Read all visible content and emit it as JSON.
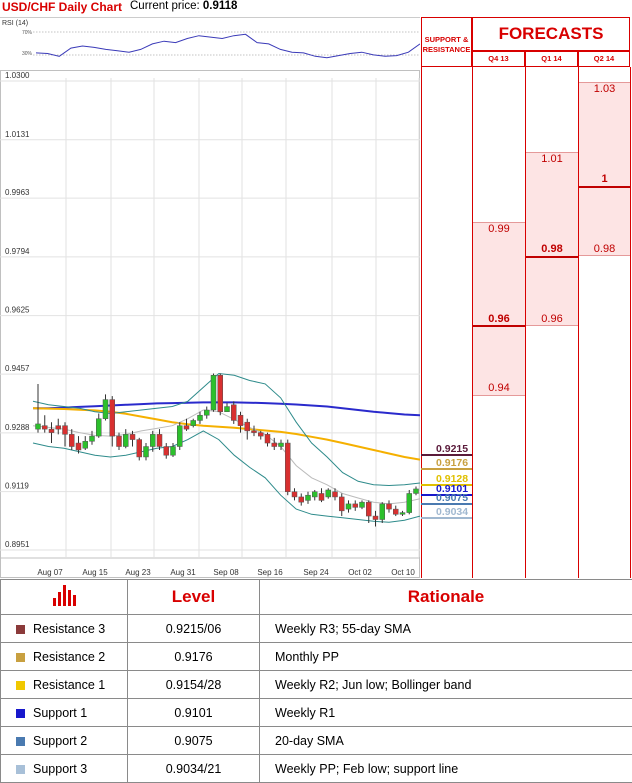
{
  "header": {
    "title": "USD/CHF Daily Chart",
    "price_label": "Current price:",
    "price_value": "0.9118"
  },
  "rsi_panel": {
    "label": "RSI (14)",
    "upper": "70%",
    "lower": "30%"
  },
  "chart_data": {
    "type": "candlestick",
    "title": "USD/CHF Daily Chart",
    "y_ticks": [
      "1.0300",
      "1.0131",
      "0.9963",
      "0.9794",
      "0.9625",
      "0.9457",
      "0.9288",
      "0.9119",
      "0.8951"
    ],
    "ylim": [
      0.8951,
      1.03
    ],
    "x_ticks": [
      "Aug 07",
      "Aug 15",
      "Aug 23",
      "Aug 31",
      "Sep 08",
      "Sep 16",
      "Sep 24",
      "Oct 02",
      "Oct 10"
    ],
    "grid": true,
    "candles": [
      {
        "o": 0.929,
        "c": 0.9305,
        "h": 0.942,
        "l": 0.928
      },
      {
        "o": 0.93,
        "c": 0.929,
        "h": 0.933,
        "l": 0.928
      },
      {
        "o": 0.929,
        "c": 0.928,
        "h": 0.931,
        "l": 0.925
      },
      {
        "o": 0.93,
        "c": 0.929,
        "h": 0.932,
        "l": 0.9275
      },
      {
        "o": 0.93,
        "c": 0.9275,
        "h": 0.931,
        "l": 0.924
      },
      {
        "o": 0.9275,
        "c": 0.924,
        "h": 0.929,
        "l": 0.923
      },
      {
        "o": 0.925,
        "c": 0.923,
        "h": 0.927,
        "l": 0.922
      },
      {
        "o": 0.9235,
        "c": 0.9255,
        "h": 0.927,
        "l": 0.923
      },
      {
        "o": 0.9255,
        "c": 0.927,
        "h": 0.9285,
        "l": 0.9245
      },
      {
        "o": 0.927,
        "c": 0.932,
        "h": 0.9335,
        "l": 0.9265
      },
      {
        "o": 0.932,
        "c": 0.9375,
        "h": 0.939,
        "l": 0.9315
      },
      {
        "o": 0.9375,
        "c": 0.927,
        "h": 0.9385,
        "l": 0.924
      },
      {
        "o": 0.927,
        "c": 0.924,
        "h": 0.928,
        "l": 0.923
      },
      {
        "o": 0.924,
        "c": 0.9275,
        "h": 0.929,
        "l": 0.9235
      },
      {
        "o": 0.9275,
        "c": 0.926,
        "h": 0.9285,
        "l": 0.924
      },
      {
        "o": 0.926,
        "c": 0.921,
        "h": 0.9265,
        "l": 0.92
      },
      {
        "o": 0.921,
        "c": 0.924,
        "h": 0.925,
        "l": 0.92
      },
      {
        "o": 0.924,
        "c": 0.9275,
        "h": 0.9285,
        "l": 0.9225
      },
      {
        "o": 0.9275,
        "c": 0.924,
        "h": 0.929,
        "l": 0.923
      },
      {
        "o": 0.924,
        "c": 0.9215,
        "h": 0.925,
        "l": 0.9205
      },
      {
        "o": 0.9215,
        "c": 0.924,
        "h": 0.925,
        "l": 0.921
      },
      {
        "o": 0.924,
        "c": 0.93,
        "h": 0.931,
        "l": 0.923
      },
      {
        "o": 0.93,
        "c": 0.929,
        "h": 0.932,
        "l": 0.9285
      },
      {
        "o": 0.93,
        "c": 0.9315,
        "h": 0.932,
        "l": 0.9295
      },
      {
        "o": 0.9315,
        "c": 0.933,
        "h": 0.934,
        "l": 0.9305
      },
      {
        "o": 0.933,
        "c": 0.9345,
        "h": 0.9355,
        "l": 0.932
      },
      {
        "o": 0.9345,
        "c": 0.9445,
        "h": 0.945,
        "l": 0.934
      },
      {
        "o": 0.9445,
        "c": 0.934,
        "h": 0.945,
        "l": 0.933
      },
      {
        "o": 0.934,
        "c": 0.9355,
        "h": 0.9365,
        "l": 0.934
      },
      {
        "o": 0.936,
        "c": 0.9315,
        "h": 0.937,
        "l": 0.9305
      },
      {
        "o": 0.933,
        "c": 0.93,
        "h": 0.934,
        "l": 0.928
      },
      {
        "o": 0.931,
        "c": 0.9285,
        "h": 0.932,
        "l": 0.926
      },
      {
        "o": 0.9285,
        "c": 0.928,
        "h": 0.93,
        "l": 0.927
      },
      {
        "o": 0.928,
        "c": 0.927,
        "h": 0.9285,
        "l": 0.926
      },
      {
        "o": 0.9275,
        "c": 0.925,
        "h": 0.928,
        "l": 0.924
      },
      {
        "o": 0.925,
        "c": 0.924,
        "h": 0.9265,
        "l": 0.923
      },
      {
        "o": 0.924,
        "c": 0.925,
        "h": 0.926,
        "l": 0.923
      },
      {
        "o": 0.925,
        "c": 0.911,
        "h": 0.926,
        "l": 0.91
      },
      {
        "o": 0.911,
        "c": 0.9095,
        "h": 0.912,
        "l": 0.9085
      },
      {
        "o": 0.9095,
        "c": 0.908,
        "h": 0.9105,
        "l": 0.907
      },
      {
        "o": 0.9085,
        "c": 0.91,
        "h": 0.911,
        "l": 0.9075
      },
      {
        "o": 0.9095,
        "c": 0.911,
        "h": 0.9115,
        "l": 0.9085
      },
      {
        "o": 0.9105,
        "c": 0.9085,
        "h": 0.912,
        "l": 0.908
      },
      {
        "o": 0.9095,
        "c": 0.9115,
        "h": 0.912,
        "l": 0.909
      },
      {
        "o": 0.911,
        "c": 0.9095,
        "h": 0.912,
        "l": 0.9085
      },
      {
        "o": 0.9095,
        "c": 0.9055,
        "h": 0.9105,
        "l": 0.904
      },
      {
        "o": 0.906,
        "c": 0.9075,
        "h": 0.9085,
        "l": 0.905
      },
      {
        "o": 0.9075,
        "c": 0.9065,
        "h": 0.9085,
        "l": 0.9055
      },
      {
        "o": 0.9065,
        "c": 0.908,
        "h": 0.9085,
        "l": 0.906
      },
      {
        "o": 0.908,
        "c": 0.904,
        "h": 0.9085,
        "l": 0.902
      },
      {
        "o": 0.904,
        "c": 0.903,
        "h": 0.9055,
        "l": 0.901
      },
      {
        "o": 0.903,
        "c": 0.9075,
        "h": 0.908,
        "l": 0.902
      },
      {
        "o": 0.9075,
        "c": 0.906,
        "h": 0.9085,
        "l": 0.905
      },
      {
        "o": 0.906,
        "c": 0.9045,
        "h": 0.907,
        "l": 0.904
      },
      {
        "o": 0.9045,
        "c": 0.905,
        "h": 0.9055,
        "l": 0.904
      },
      {
        "o": 0.905,
        "c": 0.9105,
        "h": 0.9115,
        "l": 0.9045
      },
      {
        "o": 0.9105,
        "c": 0.9118,
        "h": 0.9125,
        "l": 0.91
      }
    ],
    "overlays": [
      {
        "color": "#2a2acc",
        "values": [
          0.935,
          0.935,
          0.9352,
          0.9354,
          0.9356,
          0.9358,
          0.936,
          0.9362,
          0.9364,
          0.9365,
          0.9366,
          0.9367,
          0.9367,
          0.9367,
          0.9366,
          0.9365,
          0.9363,
          0.9361,
          0.9358,
          0.9355,
          0.935,
          0.9345,
          0.934,
          0.9336,
          0.9332,
          0.933
        ]
      },
      {
        "color": "#f5b000",
        "values": [
          0.935,
          0.9349,
          0.9348,
          0.9346,
          0.9344,
          0.934,
          0.9334,
          0.9326,
          0.9318,
          0.931,
          0.9304,
          0.93,
          0.9297,
          0.9294,
          0.929,
          0.9286,
          0.9282,
          0.9276,
          0.9268,
          0.926,
          0.925,
          0.924,
          0.923,
          0.922,
          0.921,
          0.9202
        ]
      },
      {
        "color": "#bbbbbb",
        "values": [
          0.93,
          0.9295,
          0.929,
          0.928,
          0.9272,
          0.927,
          0.9275,
          0.9285,
          0.9292,
          0.93,
          0.932,
          0.9345,
          0.934,
          0.9318,
          0.9295,
          0.9275,
          0.924,
          0.9185,
          0.915,
          0.913,
          0.9105,
          0.9092,
          0.908,
          0.9075,
          0.908,
          0.909
        ]
      },
      {
        "color": "#2e8b8b",
        "values": [
          0.937,
          0.936,
          0.9355,
          0.935,
          0.934,
          0.9335,
          0.934,
          0.9345,
          0.935,
          0.9355,
          0.937,
          0.941,
          0.945,
          0.9445,
          0.943,
          0.942,
          0.938,
          0.931,
          0.925,
          0.921,
          0.9165,
          0.914,
          0.913,
          0.9128,
          0.913,
          0.9135
        ]
      },
      {
        "color": "#2e8b8b",
        "values": [
          0.925,
          0.924,
          0.9235,
          0.9225,
          0.9215,
          0.921,
          0.9215,
          0.9225,
          0.9235,
          0.924,
          0.926,
          0.9285,
          0.926,
          0.9215,
          0.918,
          0.915,
          0.91,
          0.906,
          0.9045,
          0.904,
          0.9035,
          0.903,
          0.9025,
          0.9022,
          0.9028,
          0.904
        ]
      }
    ],
    "rsi_values": [
      45,
      44,
      40,
      52,
      55,
      53,
      50,
      48,
      46,
      50,
      58,
      62,
      60,
      66,
      70,
      68,
      66,
      70,
      72,
      60,
      58,
      50,
      46,
      45,
      40,
      38,
      41,
      44,
      46,
      42,
      40,
      41,
      46,
      58
    ]
  },
  "sr_levels": [
    {
      "value": "0.9215",
      "color": "#5a1a3a",
      "num": 0.9215
    },
    {
      "value": "0.9176",
      "color": "#c8a040",
      "num": 0.9176
    },
    {
      "value": "0.9128",
      "color": "#e0c000",
      "num": 0.9128
    },
    {
      "value": "0.9101",
      "color": "#1818cc",
      "num": 0.9101
    },
    {
      "value": "0.9075",
      "color": "#4a7ab0",
      "num": 0.9075
    },
    {
      "value": "0.9034",
      "color": "#a0b8d0",
      "num": 0.9034
    }
  ],
  "forecasts": {
    "header": "FORECASTS",
    "sr_header_1": "SUPPORT &",
    "sr_header_2": "RESISTANCE",
    "columns": [
      {
        "label": "Q4 13",
        "high": "0.99",
        "mid": "0.96",
        "low": "0.94"
      },
      {
        "label": "Q1 14",
        "high": "1.01",
        "mid": "0.98",
        "low": "0.96"
      },
      {
        "label": "Q2 14",
        "high": "1.03",
        "mid": "1",
        "low": "0.98"
      }
    ]
  },
  "table": {
    "header_level": "Level",
    "header_rationale": "Rationale",
    "header_icon": "bar-chart-icon",
    "rows": [
      {
        "name": "Resistance 3",
        "level": "0.9215/06",
        "rationale": "Weekly R3; 55-day SMA",
        "color": "#8b3a3a"
      },
      {
        "name": "Resistance 2",
        "level": "0.9176",
        "rationale": "Monthly PP",
        "color": "#c8a040"
      },
      {
        "name": "Resistance 1",
        "level": "0.9154/28",
        "rationale": "Weekly R2; Jun low; Bollinger band",
        "color": "#f0c800"
      },
      {
        "name": "Support 1",
        "level": "0.9101",
        "rationale": "Weekly R1",
        "color": "#1818cc"
      },
      {
        "name": "Support 2",
        "level": "0.9075",
        "rationale": "20-day SMA",
        "color": "#4a7ab0"
      },
      {
        "name": "Support 3",
        "level": "0.9034/21",
        "rationale": "Weekly PP; Feb low; support line",
        "color": "#a8c0d8"
      }
    ]
  }
}
